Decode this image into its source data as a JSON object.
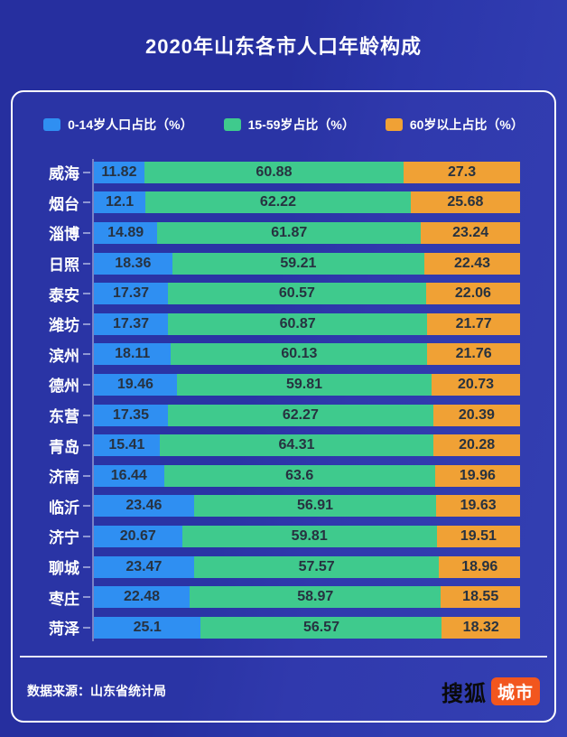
{
  "title": "2020年山东各市人口年龄构成",
  "legend": [
    {
      "label": "0-14岁人口占比（%）",
      "color": "#2F8FF2"
    },
    {
      "label": "15-59岁占比（%）",
      "color": "#3FCA8D"
    },
    {
      "label": "60岁以上占比（%）",
      "color": "#F0A135"
    }
  ],
  "footer": {
    "source": "数据来源：山东省统计局",
    "logo_text": "搜狐",
    "logo_badge": "城市",
    "logo_badge_color": "#f2561e"
  },
  "chart_data": {
    "type": "bar",
    "orientation": "horizontal",
    "stacked": true,
    "title": "2020年山东各市人口年龄构成",
    "xlabel": "",
    "ylabel": "",
    "xlim": [
      0,
      100
    ],
    "grid": false,
    "legend_position": "top",
    "categories": [
      "威海",
      "烟台",
      "淄博",
      "日照",
      "泰安",
      "潍坊",
      "滨州",
      "德州",
      "东营",
      "青岛",
      "济南",
      "临沂",
      "济宁",
      "聊城",
      "枣庄",
      "菏泽"
    ],
    "series": [
      {
        "name": "0-14岁人口占比（%）",
        "color": "#2F8FF2",
        "values": [
          11.82,
          12.1,
          14.89,
          18.36,
          17.37,
          17.37,
          18.11,
          19.46,
          17.35,
          15.41,
          16.44,
          23.46,
          20.67,
          23.47,
          22.48,
          25.1
        ]
      },
      {
        "name": "15-59岁占比（%）",
        "color": "#3FCA8D",
        "values": [
          60.88,
          62.22,
          61.87,
          59.21,
          60.57,
          60.87,
          60.13,
          59.81,
          62.27,
          64.31,
          63.6,
          56.91,
          59.81,
          57.57,
          58.97,
          56.57
        ]
      },
      {
        "name": "60岁以上占比（%）",
        "color": "#F0A135",
        "values": [
          27.3,
          25.68,
          23.24,
          22.43,
          22.06,
          21.77,
          21.76,
          20.73,
          20.39,
          20.28,
          19.96,
          19.63,
          19.51,
          18.96,
          18.55,
          18.32
        ]
      }
    ]
  }
}
